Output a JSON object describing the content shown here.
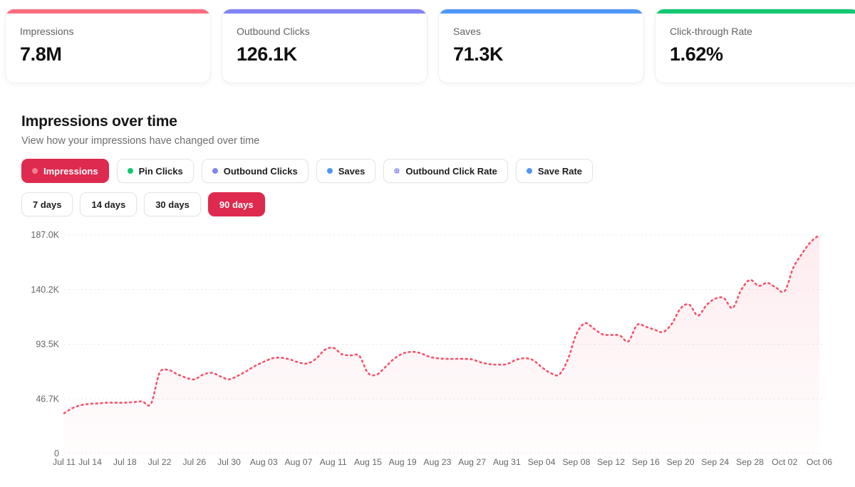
{
  "stat_cards": [
    {
      "label": "Impressions",
      "value": "7.8M",
      "accent": "#fb6e80"
    },
    {
      "label": "Outbound Clicks",
      "value": "126.1K",
      "accent": "#8184f5"
    },
    {
      "label": "Saves",
      "value": "71.3K",
      "accent": "#4f97f7"
    },
    {
      "label": "Click-through Rate",
      "value": "1.62%",
      "accent": "#12c873"
    }
  ],
  "section": {
    "title": "Impressions over time",
    "subtitle": "View how your impressions have changed over time"
  },
  "metric_pills": [
    {
      "label": "Impressions",
      "active": true,
      "dot_color": "#ee7e95",
      "dot_style": "solid"
    },
    {
      "label": "Pin Clicks",
      "active": false,
      "dot_color": "#10c96f",
      "dot_style": "solid"
    },
    {
      "label": "Outbound Clicks",
      "active": false,
      "dot_color": "#8184f5",
      "dot_style": "solid"
    },
    {
      "label": "Saves",
      "active": false,
      "dot_color": "#4f97f7",
      "dot_style": "solid"
    },
    {
      "label": "Outbound Click Rate",
      "active": false,
      "dot_color": "#8184f5",
      "dot_style": "dotted"
    },
    {
      "label": "Save Rate",
      "active": false,
      "dot_color": "#4f97f7",
      "dot_style": "solid"
    }
  ],
  "range_pills": [
    {
      "label": "7 days",
      "active": false
    },
    {
      "label": "14 days",
      "active": false
    },
    {
      "label": "30 days",
      "active": false
    },
    {
      "label": "90 days",
      "active": true
    }
  ],
  "colors": {
    "active_pill": "#de2a4e",
    "line": "#f4536b",
    "grid": "#e8e8ea",
    "tick_text": "#666666"
  },
  "chart_data": {
    "type": "line",
    "title": "Impressions over time",
    "series_name": "Impressions",
    "line_style": "dotted",
    "area_fill": true,
    "grid": "horizontal-dashed",
    "unit": "thousands",
    "ylim_k": [
      0,
      187
    ],
    "y_ticks": [
      {
        "value_k": 187,
        "label": "187.0K"
      },
      {
        "value_k": 140.25,
        "label": "140.2K"
      },
      {
        "value_k": 93.5,
        "label": "93.5K"
      },
      {
        "value_k": 46.75,
        "label": "46.7K"
      },
      {
        "value_k": 0,
        "label": "0"
      }
    ],
    "x": [
      "Jul 11",
      "Jul 12",
      "Jul 13",
      "Jul 14",
      "Jul 15",
      "Jul 16",
      "Jul 17",
      "Jul 18",
      "Jul 19",
      "Jul 20",
      "Jul 21",
      "Jul 22",
      "Jul 23",
      "Jul 24",
      "Jul 25",
      "Jul 26",
      "Jul 27",
      "Jul 28",
      "Jul 29",
      "Jul 30",
      "Jul 31",
      "Aug 01",
      "Aug 02",
      "Aug 03",
      "Aug 04",
      "Aug 05",
      "Aug 06",
      "Aug 07",
      "Aug 08",
      "Aug 09",
      "Aug 10",
      "Aug 11",
      "Aug 12",
      "Aug 13",
      "Aug 14",
      "Aug 15",
      "Aug 16",
      "Aug 17",
      "Aug 18",
      "Aug 19",
      "Aug 20",
      "Aug 21",
      "Aug 22",
      "Aug 23",
      "Aug 24",
      "Aug 25",
      "Aug 26",
      "Aug 27",
      "Aug 28",
      "Aug 29",
      "Aug 30",
      "Aug 31",
      "Sep 01",
      "Sep 02",
      "Sep 03",
      "Sep 04",
      "Sep 05",
      "Sep 06",
      "Sep 07",
      "Sep 08",
      "Sep 09",
      "Sep 10",
      "Sep 11",
      "Sep 12",
      "Sep 13",
      "Sep 14",
      "Sep 15",
      "Sep 16",
      "Sep 17",
      "Sep 18",
      "Sep 19",
      "Sep 20",
      "Sep 21",
      "Sep 22",
      "Sep 23",
      "Sep 24",
      "Sep 25",
      "Sep 26",
      "Sep 27",
      "Sep 28",
      "Sep 29",
      "Sep 30",
      "Oct 01",
      "Oct 02",
      "Oct 03",
      "Oct 04",
      "Oct 05",
      "Oct 06"
    ],
    "values_k": [
      34.5,
      39,
      41.5,
      42.5,
      43,
      43.5,
      43.5,
      43.5,
      44,
      44.5,
      42.5,
      69,
      71.5,
      68,
      65,
      63.5,
      67.5,
      69,
      66,
      63.5,
      66.5,
      70.5,
      75,
      78.5,
      81.5,
      82,
      80.5,
      78,
      77,
      81,
      88.5,
      90.5,
      85,
      84,
      83.5,
      69,
      67.5,
      74,
      81,
      85.5,
      87,
      86,
      83,
      81.5,
      81,
      81,
      81,
      80.5,
      78,
      76.5,
      76,
      76.5,
      80,
      81.5,
      80,
      74,
      69,
      67.5,
      80,
      102,
      111.5,
      107,
      102,
      101.5,
      101,
      96,
      110,
      108.5,
      106,
      104,
      111,
      124,
      127.5,
      118,
      127,
      132.5,
      133,
      124.5,
      140,
      148.5,
      143.5,
      146,
      142,
      139,
      159,
      171,
      181,
      187
    ],
    "x_tick_labels": [
      {
        "index": 0,
        "label": "Jul 11"
      },
      {
        "index": 3,
        "label": "Jul 14"
      },
      {
        "index": 7,
        "label": "Jul 18"
      },
      {
        "index": 11,
        "label": "Jul 22"
      },
      {
        "index": 15,
        "label": "Jul 26"
      },
      {
        "index": 19,
        "label": "Jul 30"
      },
      {
        "index": 23,
        "label": "Aug 03"
      },
      {
        "index": 27,
        "label": "Aug 07"
      },
      {
        "index": 31,
        "label": "Aug 11"
      },
      {
        "index": 35,
        "label": "Aug 15"
      },
      {
        "index": 39,
        "label": "Aug 19"
      },
      {
        "index": 43,
        "label": "Aug 23"
      },
      {
        "index": 47,
        "label": "Aug 27"
      },
      {
        "index": 51,
        "label": "Aug 31"
      },
      {
        "index": 55,
        "label": "Sep 04"
      },
      {
        "index": 59,
        "label": "Sep 08"
      },
      {
        "index": 63,
        "label": "Sep 12"
      },
      {
        "index": 67,
        "label": "Sep 16"
      },
      {
        "index": 71,
        "label": "Sep 20"
      },
      {
        "index": 75,
        "label": "Sep 24"
      },
      {
        "index": 79,
        "label": "Sep 28"
      },
      {
        "index": 83,
        "label": "Oct 02"
      },
      {
        "index": 87,
        "label": "Oct 06"
      }
    ]
  }
}
